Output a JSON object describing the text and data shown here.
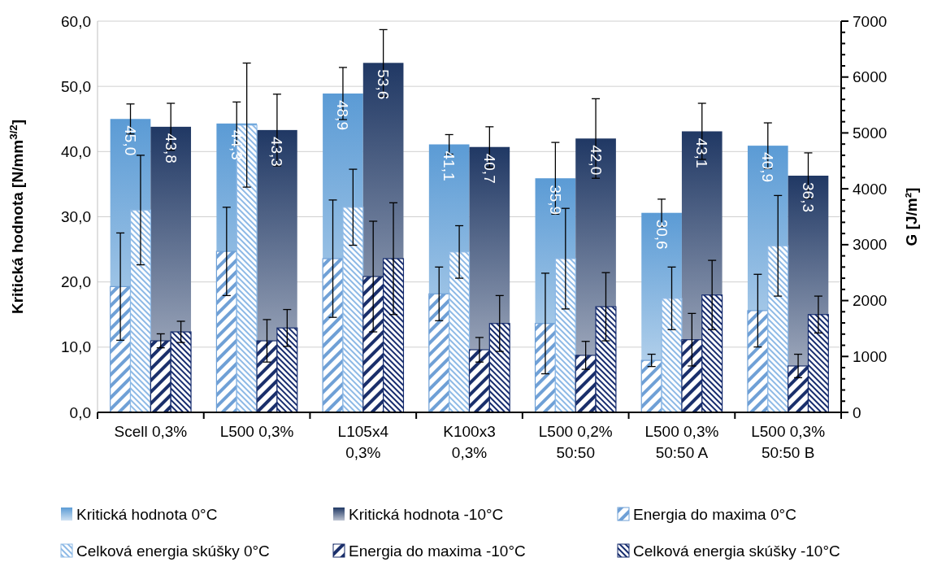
{
  "chart_data": {
    "type": "bar",
    "categories": [
      "Scell 0,3%",
      "L500 0,3%",
      "L105x4\n0,3%",
      "K100x3\n0,3%",
      "L500 0,2%\n50:50",
      "L500 0,3%\n50:50 A",
      "L500 0,3%\n50:50 B"
    ],
    "ylabel": "Kritická hodnota [N/mm$^{3/2}$]",
    "y2label": "G  [J/m²]",
    "ylim": [
      0,
      60
    ],
    "yticks": [
      {
        "value": 0,
        "label": "0,0"
      },
      {
        "value": 10,
        "label": "10,0"
      },
      {
        "value": 20,
        "label": "20,0"
      },
      {
        "value": 30,
        "label": "30,0"
      },
      {
        "value": 40,
        "label": "40,0"
      },
      {
        "value": 50,
        "label": "50,0"
      },
      {
        "value": 60,
        "label": "60,0"
      }
    ],
    "y2lim": [
      0,
      7000
    ],
    "y2ticks": [
      0,
      {
        "value": 200,
        "label": null
      },
      {
        "value": 400,
        "label": null
      },
      {
        "value": 600,
        "label": null
      },
      {
        "value": 800,
        "label": null
      },
      1000,
      {
        "value": 1200,
        "label": null
      },
      {
        "value": 1400,
        "label": null
      },
      {
        "value": 1600,
        "label": null
      },
      {
        "value": 1800,
        "label": null
      },
      2000,
      {
        "value": 2200,
        "label": null
      },
      {
        "value": 2400,
        "label": null
      },
      {
        "value": 2600,
        "label": null
      },
      {
        "value": 2800,
        "label": null
      },
      3000,
      {
        "value": 3200,
        "label": null
      },
      {
        "value": 3400,
        "label": null
      },
      {
        "value": 3600,
        "label": null
      },
      {
        "value": 3800,
        "label": null
      },
      4000,
      {
        "value": 4200,
        "label": null
      },
      {
        "value": 4400,
        "label": null
      },
      {
        "value": 4600,
        "label": null
      },
      {
        "value": 4800,
        "label": null
      },
      5000,
      {
        "value": 5200,
        "label": null
      },
      {
        "value": 5400,
        "label": null
      },
      {
        "value": 5600,
        "label": null
      },
      {
        "value": 5800,
        "label": null
      },
      6000,
      {
        "value": 6200,
        "label": null
      },
      {
        "value": 6400,
        "label": null
      },
      {
        "value": 6600,
        "label": null
      },
      {
        "value": 6800,
        "label": null
      },
      7000
    ],
    "grid": "y",
    "legend": "bottom",
    "series": [
      {
        "name": "Kritická hodnota 0°C",
        "color": "#5b9bd5",
        "values": [
          45.0,
          44.3,
          48.9,
          41.1,
          35.9,
          30.6,
          40.9
        ],
        "value_labels": [
          "45,0",
          "44,3",
          "48,9",
          "41,1",
          "35,9",
          "30,6",
          "40,9"
        ],
        "errors": [
          2.3,
          3.3,
          4.0,
          1.5,
          5.5,
          2.1,
          3.5
        ]
      },
      {
        "name": "Kritická hodnota -10°C",
        "color": "#203864",
        "values": [
          43.8,
          43.3,
          53.6,
          40.7,
          42.0,
          43.1,
          36.3
        ],
        "value_labels": [
          "43,8",
          "43,3",
          "53,6",
          "40,7",
          "42,0",
          "43,1",
          "36,3"
        ],
        "errors": [
          3.6,
          5.5,
          5.1,
          3.1,
          6.1,
          4.3,
          3.5
        ]
      },
      {
        "name": "Energia do maxima 0°C",
        "color": "#6fa0d6",
        "axis": "y2",
        "values": [
          2250,
          2880,
          2750,
          2120,
          1590,
          930,
          1820
        ],
        "errors": [
          960,
          790,
          1050,
          480,
          900,
          110,
          650
        ]
      },
      {
        "name": "Celková energia skúšky 0°C",
        "color": "#8db9e6",
        "axis": "y2",
        "values": [
          3620,
          5140,
          3670,
          2870,
          2750,
          2040,
          2980
        ],
        "errors": [
          980,
          1110,
          680,
          470,
          900,
          560,
          900
        ]
      },
      {
        "name": "Energia do maxima -10°C",
        "color": "#1a2f6b",
        "axis": "y2",
        "values": [
          1280,
          1280,
          2430,
          1120,
          1020,
          1300,
          830
        ],
        "errors": [
          125,
          380,
          990,
          220,
          250,
          470,
          210
        ]
      },
      {
        "name": "Celková energia skúšky -10°C",
        "color": "#162c6e",
        "axis": "y2",
        "values": [
          1440,
          1510,
          2750,
          1590,
          1890,
          2100,
          1750
        ],
        "errors": [
          190,
          330,
          1000,
          500,
          610,
          620,
          330
        ]
      }
    ]
  }
}
